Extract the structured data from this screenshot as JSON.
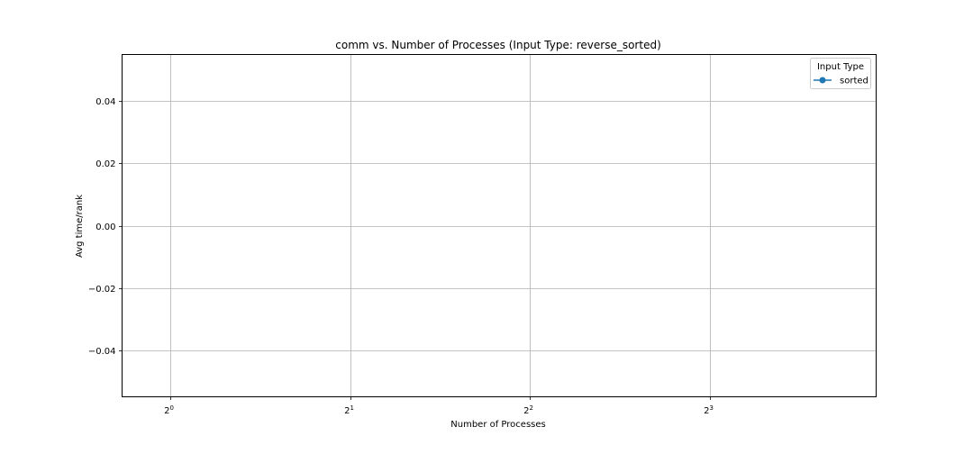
{
  "chart_data": {
    "type": "line",
    "title": "comm vs. Number of Processes (Input Type: reverse_sorted)",
    "xlabel": "Number of Processes",
    "ylabel": "Avg time/rank",
    "x_scale": "log2",
    "x_ticks": [
      {
        "value": 1,
        "base": "2",
        "exp": "0"
      },
      {
        "value": 2,
        "base": "2",
        "exp": "1"
      },
      {
        "value": 4,
        "base": "2",
        "exp": "2"
      },
      {
        "value": 8,
        "base": "2",
        "exp": "3"
      }
    ],
    "xlim": [
      0.83,
      15.2
    ],
    "ylim": [
      -0.055,
      0.055
    ],
    "y_ticks": [
      {
        "value": 0.04,
        "label": "0.04"
      },
      {
        "value": 0.02,
        "label": "0.02"
      },
      {
        "value": 0.0,
        "label": "0.00"
      },
      {
        "value": -0.02,
        "label": "−0.02"
      },
      {
        "value": -0.04,
        "label": "−0.04"
      }
    ],
    "grid": true,
    "legend": {
      "title": "Input Type",
      "placement": "top-right",
      "entries": [
        {
          "label": "sorted",
          "color": "#1f77b4",
          "marker": "circle"
        }
      ]
    },
    "series": [
      {
        "name": "sorted",
        "color": "#1f77b4",
        "x": [],
        "y": []
      }
    ]
  }
}
